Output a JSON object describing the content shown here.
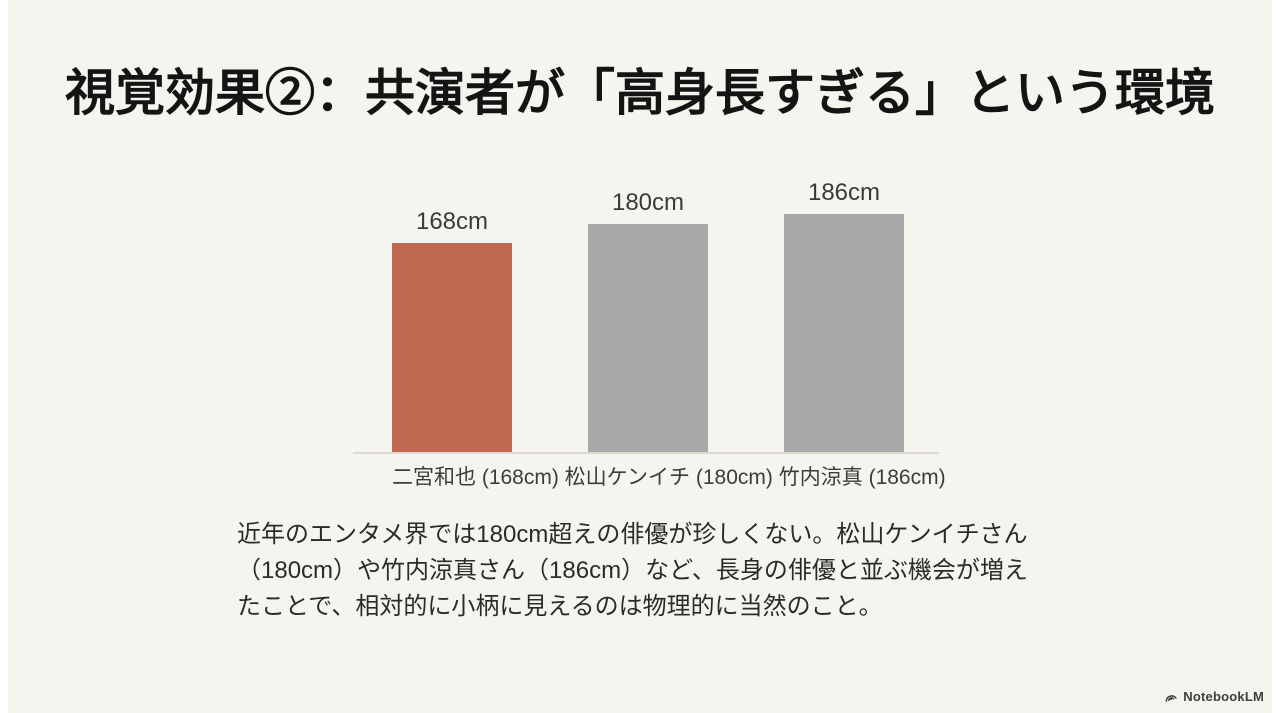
{
  "slide": {
    "title": "視覚効果②：共演者が「高身長すぎる」という環境",
    "body_lines": [
      "近年のエンタメ界では180cm超えの俳優が珍しくない。松山ケンイチさん",
      "（180cm）や竹内涼真さん（186cm）など、長身の俳優と並ぶ機会が増え",
      "たことで、相対的に小柄に見えるのは物理的に当然のこと。"
    ],
    "watermark": "NotebookLM"
  },
  "chart_data": {
    "type": "bar",
    "title": "",
    "xlabel": "",
    "ylabel": "",
    "categories": [
      "二宮和也",
      "松山ケンイチ",
      "竹内涼真"
    ],
    "values": [
      168,
      180,
      186
    ],
    "unit": "cm",
    "bar_labels": [
      "168cm",
      "180cm",
      "186cm"
    ],
    "caption": "二宮和也 (168cm) 松山ケンイチ (180cm) 竹内涼真 (186cm)",
    "highlight_index": 0,
    "colors": {
      "highlight": "#c1694e",
      "default": "#a9a9a9"
    },
    "grid": false,
    "legend": false,
    "baseline_axis": true
  }
}
